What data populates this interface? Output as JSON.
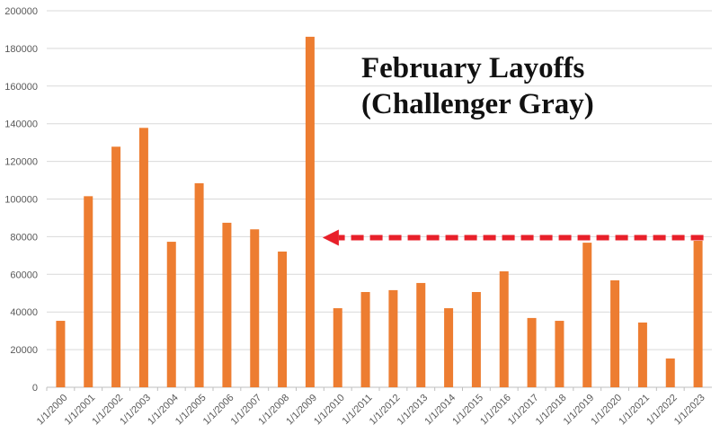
{
  "chart_data": {
    "type": "bar",
    "title": "February Layoffs\n(Challenger Gray)",
    "title_lines": [
      "February Layoffs",
      "(Challenger Gray)"
    ],
    "xlabel": "",
    "ylabel": "",
    "ylim": [
      0,
      200000
    ],
    "yticks": [
      0,
      20000,
      40000,
      60000,
      80000,
      100000,
      120000,
      140000,
      160000,
      180000,
      200000
    ],
    "grid": true,
    "bar_color": "#ED7D31",
    "categories": [
      "1/1/2000",
      "1/1/2001",
      "1/1/2002",
      "1/1/2003",
      "1/1/2004",
      "1/1/2005",
      "1/1/2006",
      "1/1/2007",
      "1/1/2008",
      "1/1/2009",
      "1/1/2010",
      "1/1/2011",
      "1/1/2012",
      "1/1/2013",
      "1/1/2014",
      "1/1/2015",
      "1/1/2016",
      "1/1/2017",
      "1/1/2018",
      "1/1/2019",
      "1/1/2020",
      "1/1/2021",
      "1/1/2022",
      "1/1/2023"
    ],
    "values": [
      35300,
      101500,
      127800,
      137800,
      77300,
      108400,
      87400,
      83900,
      72100,
      186200,
      42000,
      50600,
      51600,
      55400,
      42000,
      50600,
      61600,
      36800,
      35300,
      76800,
      56800,
      34400,
      15300,
      77800
    ],
    "annotation": {
      "type": "dashed-arrow",
      "color": "#E8202A",
      "y": 79500,
      "from": "1/1/2023",
      "to": "1/1/2009"
    }
  }
}
